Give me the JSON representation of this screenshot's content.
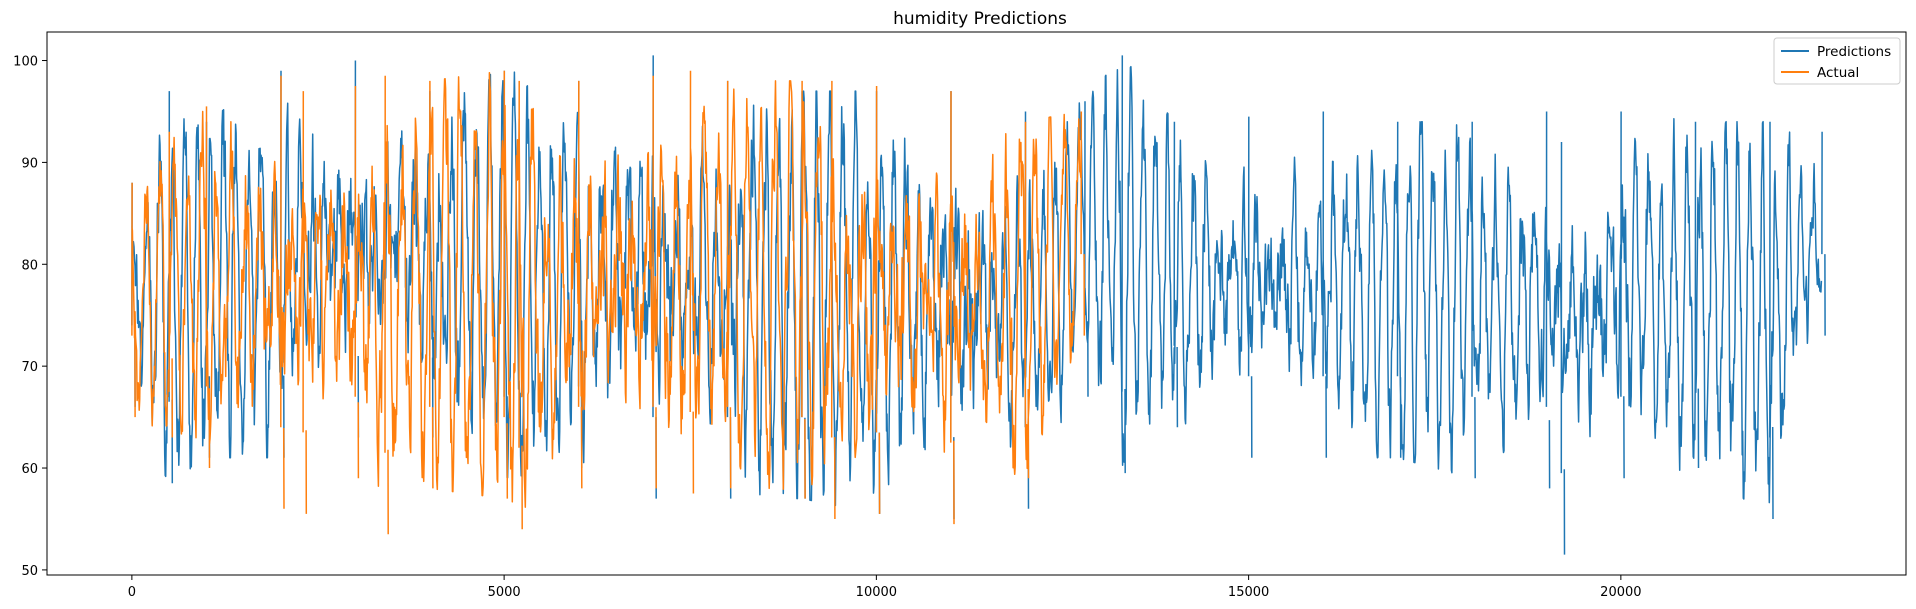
{
  "chart_data": {
    "type": "line",
    "title": "humidity Predictions",
    "xlabel": "",
    "ylabel": "",
    "xlim": [
      -1140,
      23830
    ],
    "ylim": [
      49.5,
      102.8
    ],
    "xticks": [
      0,
      5000,
      10000,
      15000,
      20000
    ],
    "yticks": [
      50,
      60,
      70,
      80,
      90,
      100
    ],
    "grid": false,
    "legend": {
      "placement": "top-right",
      "entries": [
        "Predictions",
        "Actual"
      ]
    },
    "series": [
      {
        "name": "Predictions",
        "color": "#1f77b4",
        "x_range": [
          0,
          22700
        ],
        "envelope": {
          "x": [
            0,
            500,
            1000,
            2000,
            3000,
            4000,
            5000,
            6000,
            7000,
            8000,
            9000,
            10000,
            11000,
            12000,
            12800,
            13300,
            14000,
            15000,
            16000,
            17000,
            18000,
            19000,
            19200,
            20000,
            21000,
            22000,
            22700
          ],
          "max": [
            88,
            97,
            94,
            99,
            100,
            97,
            99,
            98,
            100.5,
            98,
            97,
            97,
            97,
            95,
            96,
            100.5,
            94,
            94.5,
            95,
            94,
            94,
            95,
            92,
            95,
            94,
            94,
            93
          ],
          "min": [
            66,
            58.5,
            61,
            61,
            63,
            63,
            59,
            60,
            57,
            57,
            57,
            55.5,
            55,
            56,
            67,
            59.5,
            64,
            61,
            61,
            61,
            59,
            58,
            51.5,
            59,
            60,
            55,
            73
          ]
        },
        "summary": {
          "max": 100.5,
          "min": 51.5,
          "mean": 79
        }
      },
      {
        "name": "Actual",
        "color": "#ff7f0e",
        "x_range": [
          0,
          12750
        ],
        "envelope": {
          "x": [
            0,
            500,
            1000,
            2000,
            2300,
            3000,
            3400,
            4000,
            5000,
            5200,
            6000,
            7000,
            7500,
            8000,
            9000,
            9400,
            10000,
            11000,
            12000,
            12750
          ],
          "max": [
            88,
            93,
            95.5,
            98.5,
            97,
            97.5,
            98.5,
            98,
            99,
            98,
            98,
            98.5,
            99,
            98,
            98,
            98,
            97.5,
            97,
            94,
            95
          ],
          "min": [
            65,
            63,
            60,
            56,
            55.5,
            59,
            53.5,
            58,
            57,
            54,
            58,
            58,
            57.5,
            58,
            57,
            55,
            55.5,
            54.5,
            59,
            73
          ]
        },
        "summary": {
          "max": 99,
          "min": 53.5,
          "mean": 79
        }
      }
    ]
  }
}
